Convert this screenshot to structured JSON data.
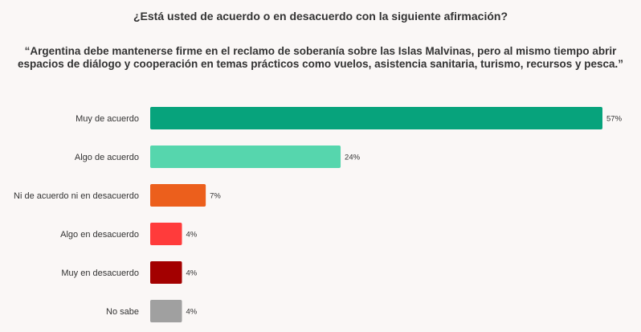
{
  "chart_data": {
    "type": "bar",
    "orientation": "horizontal",
    "title": "¿Está usted de acuerdo o en desacuerdo con la siguiente afirmación?",
    "subtitle": "“Argentina debe mantenerse firme en el reclamo de soberanía sobre las Islas Malvinas, pero al mismo tiempo abrir espacios de diálogo y cooperación en temas prácticos como vuelos, asistencia sanitaria, turismo, recursos y pesca.”",
    "categories": [
      "Muy de acuerdo",
      "Algo de acuerdo",
      "Ni de acuerdo ni en desacuerdo",
      "Algo en desacuerdo",
      "Muy en desacuerdo",
      "No sabe"
    ],
    "values": [
      57,
      24,
      7,
      4,
      4,
      4
    ],
    "value_labels": [
      "57%",
      "24%",
      "7%",
      "4%",
      "4%",
      "4%"
    ],
    "colors": [
      "#07a37c",
      "#56d6ad",
      "#ec5f1c",
      "#ff3b3b",
      "#a30000",
      "#a0a0a0"
    ],
    "xlim": [
      0,
      57
    ],
    "grid": false,
    "legend": "none"
  }
}
